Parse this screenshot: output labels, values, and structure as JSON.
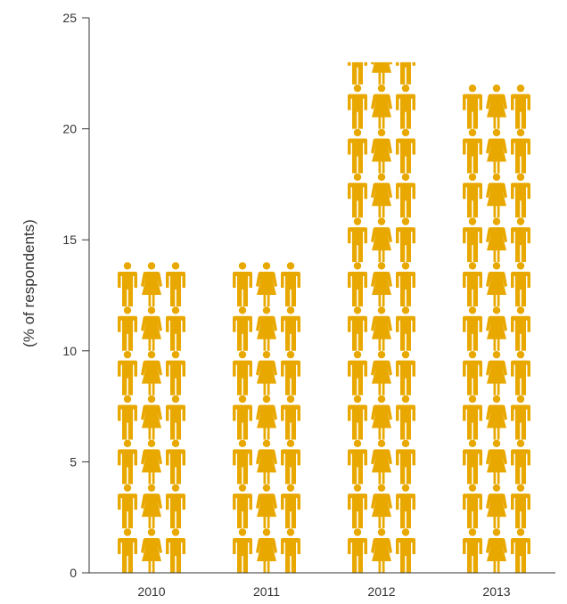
{
  "chart_data": {
    "type": "bar",
    "style": "pictogram",
    "categories": [
      "2010",
      "2011",
      "2012",
      "2013"
    ],
    "values": [
      14,
      14,
      23,
      22
    ],
    "title": "",
    "xlabel": "",
    "ylabel": "(% of respondents)",
    "ylim": [
      0,
      25
    ],
    "yticks": [
      "0",
      "5",
      "10",
      "15",
      "20",
      "25"
    ],
    "grid": false,
    "legend": "none",
    "colors": {
      "icon": "#e8a800",
      "axis": "#333333",
      "text": "#333333"
    }
  }
}
